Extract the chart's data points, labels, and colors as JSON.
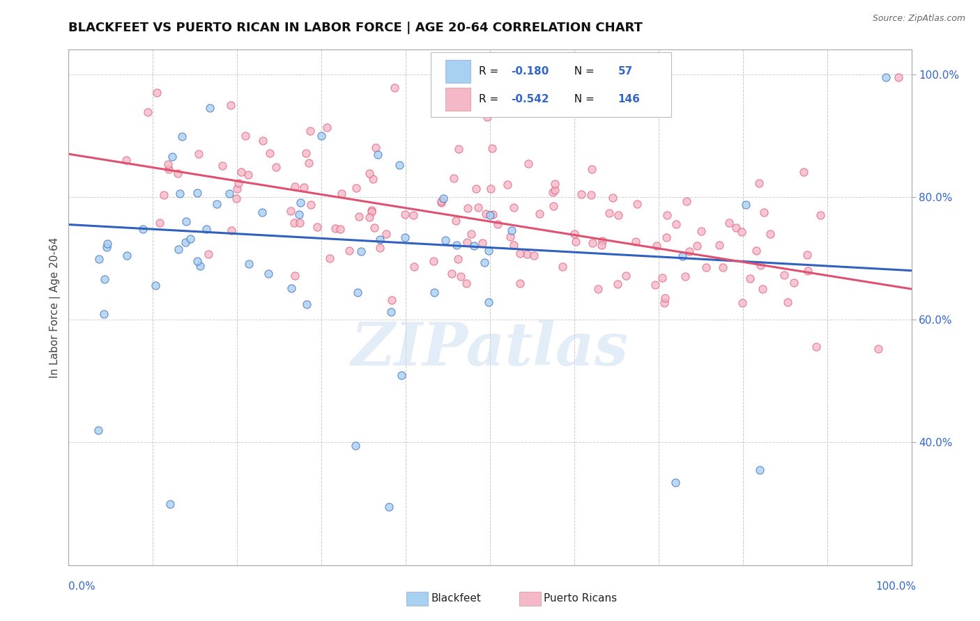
{
  "title": "BLACKFEET VS PUERTO RICAN IN LABOR FORCE | AGE 20-64 CORRELATION CHART",
  "source_text": "Source: ZipAtlas.com",
  "ylabel": "In Labor Force | Age 20-64",
  "watermark": "ZIPatlas",
  "legend": {
    "r_blackfeet": -0.18,
    "n_blackfeet": 57,
    "r_puerto_rican": -0.542,
    "n_puerto_rican": 146
  },
  "blackfeet_color": "#A8D0F0",
  "puerto_rican_color": "#F5B8C8",
  "regression_blue": "#3060C0",
  "regression_pink": "#E05070",
  "xlim": [
    0.0,
    1.0
  ],
  "ylim": [
    0.2,
    1.04
  ],
  "ytick_right_labels": [
    "40.0%",
    "60.0%",
    "80.0%",
    "100.0%"
  ],
  "ytick_right_values": [
    0.4,
    0.6,
    0.8,
    1.0
  ],
  "background_color": "#FFFFFF",
  "grid_color": "#CCCCCC",
  "bf_intercept": 0.755,
  "bf_slope": -0.075,
  "pr_intercept": 0.87,
  "pr_slope": -0.22
}
